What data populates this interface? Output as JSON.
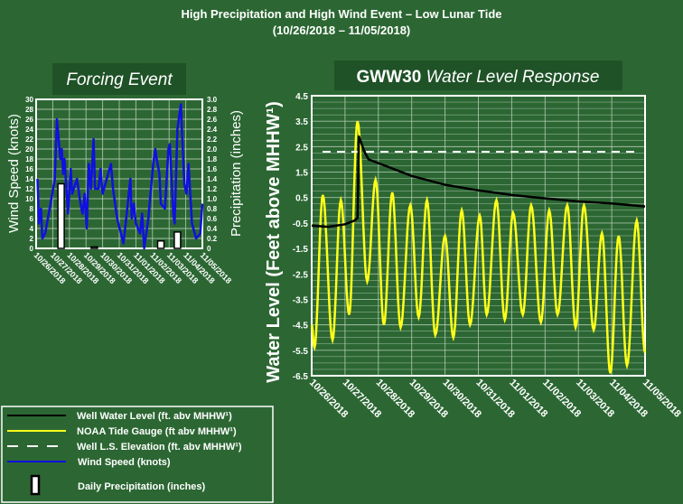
{
  "colors": {
    "background": "#2c6733",
    "title_box": "#1f5227",
    "grid": "#b9cfb9",
    "well": "#000000",
    "tide": "#ffff1a",
    "wind": "#1010e0",
    "ls_elev": "#ffffff",
    "precip": "#ffffff"
  },
  "header": {
    "title": "High Precipitation and High Wind Event – Low Lunar Tide",
    "subtitle": "(10/26/2018 – 11/05/2018)"
  },
  "chart_data": [
    {
      "type": "line",
      "title": "Forcing Event",
      "ylabel": "Wind Speed (knots)",
      "y2label": "Precipitation (inches)",
      "ylim": [
        0,
        30
      ],
      "y2lim": [
        0,
        3.0
      ],
      "yticks": [
        "0",
        "2",
        "4",
        "6",
        "8",
        "10",
        "12",
        "14",
        "16",
        "18",
        "20",
        "22",
        "24",
        "26",
        "28",
        "30"
      ],
      "y2ticks": [
        "0",
        "0.2",
        "0.4",
        "0.6",
        "0.8",
        "1.0",
        "1.2",
        "1.4",
        "1.6",
        "1.8",
        "2.0",
        "2.2",
        "2.4",
        "2.6",
        "2.8",
        "3.0"
      ],
      "xticks": [
        "10/26/2018",
        "10/27/2018",
        "10/28/2018",
        "10/29/2018",
        "10/30/2018",
        "10/31/2018",
        "11/01/2018",
        "11/02/2018",
        "11/03/2018",
        "11/04/2018",
        "11/05/2018"
      ],
      "xlim": [
        "2018-10-26T00:00",
        "2018-11-05T00:00"
      ],
      "grid": true,
      "series": [
        {
          "name": "Wind Speed (knots)",
          "type": "line",
          "axis": "left",
          "x": [
            "2018-10-26T02:00",
            "2018-10-26T04:00",
            "2018-10-26T07:00",
            "2018-10-26T09:00",
            "2018-10-26T13:00",
            "2018-10-26T22:00",
            "2018-10-27T03:00",
            "2018-10-27T06:00",
            "2018-10-27T11:00",
            "2018-10-27T13:00",
            "2018-10-27T15:00",
            "2018-10-27T17:00",
            "2018-10-27T22:00",
            "2018-10-28T02:00",
            "2018-10-28T04:00",
            "2018-10-28T11:00",
            "2018-10-28T16:00",
            "2018-10-28T19:00",
            "2018-10-28T22:00",
            "2018-10-29T01:00",
            "2018-10-29T04:00",
            "2018-10-29T07:00",
            "2018-10-29T11:00",
            "2018-10-29T13:00",
            "2018-10-29T18:00",
            "2018-10-29T21:00",
            "2018-10-30T00:00",
            "2018-10-30T08:00",
            "2018-10-30T12:00",
            "2018-10-30T15:00",
            "2018-10-30T21:00",
            "2018-10-31T06:00",
            "2018-10-31T10:00",
            "2018-10-31T16:00",
            "2018-10-31T18:00",
            "2018-10-31T21:00",
            "2018-11-01T00:00",
            "2018-11-01T06:00",
            "2018-11-01T09:00",
            "2018-11-01T12:00",
            "2018-11-01T18:00",
            "2018-11-02T01:00",
            "2018-11-02T04:00",
            "2018-11-02T06:00",
            "2018-11-02T10:00",
            "2018-11-02T12:00",
            "2018-11-02T18:00",
            "2018-11-02T23:00",
            "2018-11-03T01:00",
            "2018-11-03T06:00",
            "2018-11-03T08:00",
            "2018-11-03T12:00",
            "2018-11-03T17:00",
            "2018-11-03T19:00",
            "2018-11-03T22:00",
            "2018-11-04T01:00",
            "2018-11-04T04:00",
            "2018-11-04T09:00",
            "2018-11-04T15:00",
            "2018-11-04T21:00",
            "2018-11-05T00:00"
          ],
          "values": [
            14,
            5,
            8,
            2,
            3,
            10,
            14,
            26,
            18,
            20,
            15,
            18,
            7,
            16,
            11,
            14,
            9,
            7,
            11,
            4,
            17,
            12,
            22,
            12,
            12,
            16,
            11,
            15,
            17,
            12,
            6,
            1,
            6,
            14,
            6,
            9,
            5,
            3,
            7,
            0,
            6,
            17,
            20,
            18,
            15,
            9,
            8,
            20,
            21,
            7,
            5,
            24,
            29,
            22,
            13,
            11,
            17,
            5,
            2,
            3,
            9
          ]
        },
        {
          "name": "Daily Precipitation (inches)",
          "type": "bar",
          "axis": "right",
          "x": [
            "2018-10-27",
            "2018-10-29",
            "2018-11-02",
            "2018-11-03"
          ],
          "values": [
            1.3,
            0.03,
            0.15,
            0.33
          ]
        }
      ]
    },
    {
      "type": "line",
      "title_bold": "GWW30",
      "title_italic": "Water Level Response",
      "ylabel": "Water Level (Feet above MHHW¹)",
      "ylim": [
        -6.5,
        4.5
      ],
      "yticks": [
        "4.5",
        "3.5",
        "2.5",
        "1.5",
        "0.5",
        "-0.5",
        "-1.5",
        "-2.5",
        "-3.5",
        "-4.5",
        "-5.5",
        "-6.5"
      ],
      "xticks": [
        "10/26/2018",
        "10/27/2018",
        "10/28/2018",
        "10/29/2018",
        "10/30/2018",
        "10/31/2018",
        "11/01/2018",
        "11/02/2018",
        "11/03/2018",
        "11/04/2018",
        "11/05/2018"
      ],
      "xlim": [
        "2018-10-26T00:00",
        "2018-11-05T00:00"
      ],
      "grid": true,
      "series": [
        {
          "name": "NOAA Tide Gauge (ft abv MHHW¹)",
          "x": [
            "2018-10-26T00:00",
            "2018-10-26T02:00",
            "2018-10-26T08:00",
            "2018-10-26T15:00",
            "2018-10-26T21:00",
            "2018-10-27T03:00",
            "2018-10-27T09:00",
            "2018-10-27T16:00",
            "2018-10-27T22:00",
            "2018-10-28T04:00",
            "2018-10-28T10:00",
            "2018-10-28T16:00",
            "2018-10-28T23:00",
            "2018-10-29T05:00",
            "2018-10-29T11:00",
            "2018-10-29T17:00",
            "2018-10-30T00:00",
            "2018-10-30T06:00",
            "2018-10-30T12:00",
            "2018-10-30T18:00",
            "2018-10-31T01:00",
            "2018-10-31T06:00",
            "2018-10-31T13:00",
            "2018-10-31T19:00",
            "2018-11-01T01:00",
            "2018-11-01T08:00",
            "2018-11-01T14:00",
            "2018-11-01T21:00",
            "2018-11-02T03:00",
            "2018-11-02T09:00",
            "2018-11-02T16:00",
            "2018-11-02T22:00",
            "2018-11-03T04:00",
            "2018-11-03T11:00",
            "2018-11-03T17:00",
            "2018-11-03T23:00",
            "2018-11-04T05:00",
            "2018-11-04T11:00",
            "2018-11-04T18:00",
            "2018-11-05T00:00"
          ],
          "values": [
            -4.5,
            -5.4,
            0.6,
            -5.1,
            0.4,
            -4.1,
            3.5,
            -2.8,
            1.2,
            -4.5,
            0.7,
            -4.6,
            0.2,
            -4.2,
            0.4,
            -4.9,
            -1.0,
            -5.0,
            0.0,
            -4.5,
            -0.2,
            -4.1,
            0.4,
            -4.3,
            -0.1,
            -4.1,
            0.2,
            -4.4,
            0.0,
            -4.1,
            0.2,
            -4.6,
            0.2,
            -4.7,
            -0.9,
            -6.4,
            -1.0,
            -6.1,
            -0.4,
            -5.6
          ]
        },
        {
          "name": "Well Water Level (ft. abv MHHW¹)",
          "x": [
            "2018-10-26T00:00",
            "2018-10-26T12:00",
            "2018-10-27T00:00",
            "2018-10-27T07:00",
            "2018-10-27T09:00",
            "2018-10-27T10:00",
            "2018-10-27T14:00",
            "2018-10-27T17:00",
            "2018-10-28T12:00",
            "2018-10-29T00:00",
            "2018-10-30T00:00",
            "2018-10-31T00:00",
            "2018-11-01T00:00",
            "2018-11-02T00:00",
            "2018-11-03T00:00",
            "2018-11-04T00:00",
            "2018-11-05T00:00"
          ],
          "values": [
            -0.6,
            -0.65,
            -0.55,
            -0.4,
            -0.3,
            2.9,
            2.3,
            2.0,
            1.6,
            1.35,
            1.0,
            0.78,
            0.6,
            0.47,
            0.35,
            0.27,
            0.15
          ]
        },
        {
          "name": "Well L.S. Elevation (ft. abv MHHW¹)",
          "constant": 2.3
        }
      ]
    }
  ],
  "legend": {
    "items": [
      {
        "label": "Well Water Level (ft. abv MHHW¹)",
        "style": "solid-black"
      },
      {
        "label": "NOAA  Tide Gauge (ft abv MHHW¹)",
        "style": "solid-yellow"
      },
      {
        "label": "Well L.S. Elevation (ft. abv MHHW¹)",
        "style": "dashed-white"
      },
      {
        "label": "Wind  Speed (knots)",
        "style": "solid-blue"
      },
      {
        "label": "Daily Precipitation (inches)",
        "style": "bar"
      }
    ]
  }
}
